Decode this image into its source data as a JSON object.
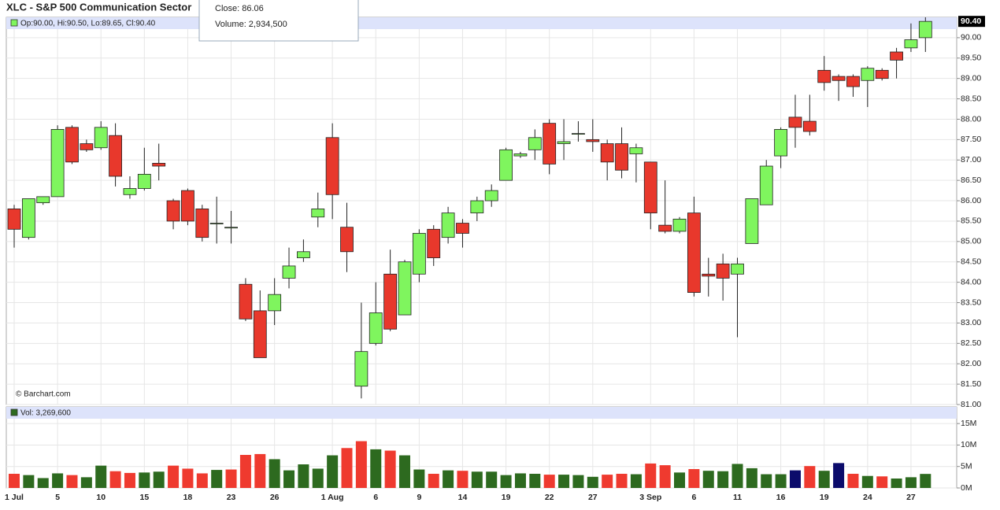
{
  "chart_data": [
    {
      "type": "candlestick",
      "title": "XLC - S&P 500 Communication Sector",
      "legend_text": "Op:90.00, Hi:90.50, Lo:89.65, Cl:90.40",
      "credit": "© Barchart.com",
      "tooltip": [
        "Close: 86.06",
        "Volume: 2,934,500"
      ],
      "last_price": {
        "value": 90.4,
        "label": "90.40"
      },
      "up_color": "#7ff55e",
      "down_color": "#e8382c",
      "legend_color": "#7ff55e",
      "categories": [
        "1 Jul",
        null,
        null,
        "5",
        null,
        null,
        "10",
        null,
        null,
        "15",
        null,
        null,
        "18",
        null,
        null,
        "23",
        null,
        null,
        "26",
        null,
        null,
        null,
        "1 Aug",
        null,
        null,
        "6",
        null,
        null,
        "9",
        null,
        null,
        "14",
        null,
        null,
        "19",
        null,
        null,
        "22",
        null,
        null,
        "27",
        null,
        null,
        null,
        "3 Sep",
        null,
        null,
        "6",
        null,
        null,
        "11",
        null,
        null,
        "16",
        null,
        null,
        "19",
        null,
        null,
        "24",
        null,
        null,
        "27",
        null
      ],
      "open": [
        85.8,
        85.1,
        85.95,
        86.1,
        87.8,
        87.4,
        87.3,
        87.6,
        86.15,
        86.3,
        86.92,
        86.0,
        86.25,
        85.8,
        85.45,
        85.35,
        83.95,
        83.3,
        83.3,
        84.1,
        84.6,
        85.6,
        87.55,
        85.35,
        81.45,
        82.5,
        84.2,
        83.2,
        84.2,
        85.3,
        85.1,
        85.45,
        85.7,
        86.0,
        86.5,
        87.1,
        87.25,
        87.9,
        87.4,
        87.65,
        87.5,
        87.4,
        87.4,
        87.15,
        86.95,
        85.4,
        85.25,
        85.7,
        84.2,
        84.45,
        84.2,
        84.95,
        85.9,
        87.1,
        88.05,
        87.95,
        89.2,
        89.05,
        89.05,
        88.95,
        89.2,
        89.65,
        89.75,
        90.0
      ],
      "high": [
        85.9,
        86.05,
        86.1,
        87.85,
        87.85,
        87.5,
        87.95,
        87.9,
        86.6,
        87.3,
        87.4,
        86.05,
        86.3,
        85.9,
        86.1,
        85.75,
        84.1,
        83.8,
        84.1,
        84.85,
        85.05,
        86.2,
        87.9,
        85.95,
        83.5,
        84.0,
        84.8,
        84.55,
        85.3,
        85.4,
        85.85,
        85.55,
        86.1,
        86.4,
        87.3,
        87.2,
        87.75,
        88.0,
        88.0,
        87.95,
        88.0,
        87.5,
        87.8,
        87.4,
        86.95,
        86.5,
        85.6,
        86.1,
        84.6,
        84.7,
        84.6,
        86.05,
        87.0,
        87.8,
        88.6,
        88.6,
        89.55,
        89.1,
        89.1,
        89.3,
        89.25,
        89.75,
        90.35,
        90.5
      ],
      "low": [
        84.85,
        85.05,
        85.9,
        86.1,
        86.9,
        87.2,
        87.25,
        86.35,
        86.05,
        86.25,
        86.5,
        85.3,
        85.4,
        85.0,
        84.95,
        84.95,
        83.05,
        82.15,
        82.95,
        83.85,
        84.5,
        85.35,
        85.55,
        84.25,
        81.15,
        82.45,
        82.8,
        83.2,
        84.0,
        84.4,
        84.95,
        84.85,
        85.5,
        85.85,
        86.5,
        87.05,
        87.0,
        86.65,
        87.0,
        87.45,
        87.2,
        86.5,
        86.55,
        86.45,
        85.3,
        85.2,
        85.2,
        83.65,
        83.65,
        83.55,
        82.65,
        84.95,
        85.9,
        86.8,
        87.3,
        87.6,
        88.7,
        88.45,
        88.55,
        88.3,
        88.95,
        89.0,
        89.65,
        89.65
      ],
      "close": [
        85.3,
        86.05,
        86.1,
        87.75,
        86.95,
        87.25,
        87.8,
        86.6,
        86.3,
        86.65,
        86.85,
        85.5,
        85.5,
        85.1,
        85.45,
        85.35,
        83.1,
        82.15,
        83.7,
        84.4,
        84.75,
        85.8,
        86.15,
        84.75,
        82.3,
        83.25,
        82.85,
        84.5,
        85.2,
        84.6,
        85.7,
        85.2,
        86.0,
        86.25,
        87.25,
        87.15,
        87.55,
        86.9,
        87.45,
        87.65,
        87.45,
        86.95,
        86.75,
        87.3,
        85.7,
        85.25,
        85.55,
        83.75,
        84.15,
        84.1,
        84.45,
        86.05,
        86.85,
        87.75,
        87.8,
        87.7,
        88.9,
        88.95,
        88.8,
        89.25,
        89.0,
        89.45,
        89.95,
        90.4
      ],
      "ylim": [
        81,
        90.5
      ],
      "yticks": [
        {
          "value": 81,
          "label": "81.00"
        },
        {
          "value": 81.5,
          "label": "81.50"
        },
        {
          "value": 82,
          "label": "82.00"
        },
        {
          "value": 82.5,
          "label": "82.50"
        },
        {
          "value": 83,
          "label": "83.00"
        },
        {
          "value": 83.5,
          "label": "83.50"
        },
        {
          "value": 84,
          "label": "84.00"
        },
        {
          "value": 84.5,
          "label": "84.50"
        },
        {
          "value": 85,
          "label": "85.00"
        },
        {
          "value": 85.5,
          "label": "85.50"
        },
        {
          "value": 86,
          "label": "86.00"
        },
        {
          "value": 86.5,
          "label": "86.50"
        },
        {
          "value": 87,
          "label": "87.00"
        },
        {
          "value": 87.5,
          "label": "87.50"
        },
        {
          "value": 88,
          "label": "88.00"
        },
        {
          "value": 88.5,
          "label": "88.50"
        },
        {
          "value": 89,
          "label": "89.00"
        },
        {
          "value": 89.5,
          "label": "89.50"
        },
        {
          "value": 90,
          "label": "90.00"
        }
      ],
      "grid": true
    },
    {
      "type": "bar",
      "legend_text": "Vol: 3,269,600",
      "legend_color": "#2d6a1f",
      "values": [
        3.3,
        3.0,
        2.3,
        3.4,
        3.0,
        2.5,
        5.2,
        3.9,
        3.5,
        3.6,
        3.8,
        5.2,
        4.5,
        3.4,
        4.2,
        4.3,
        7.7,
        7.9,
        6.7,
        4.1,
        5.5,
        4.5,
        7.6,
        9.3,
        10.9,
        9.0,
        8.7,
        7.6,
        4.3,
        3.3,
        4.1,
        4.0,
        3.8,
        3.8,
        3.0,
        3.4,
        3.3,
        3.1,
        3.1,
        3.0,
        2.6,
        3.1,
        3.3,
        3.2,
        5.7,
        5.3,
        3.6,
        4.4,
        4.0,
        3.9,
        5.6,
        4.6,
        3.2,
        3.2,
        4.1,
        5.1,
        4.0,
        5.8,
        3.3,
        2.8,
        2.7,
        2.2,
        2.5,
        3.27
      ],
      "colors": [
        "#ef3a2f",
        "#2d6a1f",
        "#2d6a1f",
        "#2d6a1f",
        "#ef3a2f",
        "#2d6a1f",
        "#2d6a1f",
        "#ef3a2f",
        "#ef3a2f",
        "#2d6a1f",
        "#2d6a1f",
        "#ef3a2f",
        "#ef3a2f",
        "#ef3a2f",
        "#2d6a1f",
        "#ef3a2f",
        "#ef3a2f",
        "#ef3a2f",
        "#2d6a1f",
        "#2d6a1f",
        "#2d6a1f",
        "#2d6a1f",
        "#2d6a1f",
        "#ef3a2f",
        "#ef3a2f",
        "#2d6a1f",
        "#ef3a2f",
        "#2d6a1f",
        "#2d6a1f",
        "#ef3a2f",
        "#2d6a1f",
        "#ef3a2f",
        "#2d6a1f",
        "#2d6a1f",
        "#2d6a1f",
        "#2d6a1f",
        "#2d6a1f",
        "#ef3a2f",
        "#2d6a1f",
        "#2d6a1f",
        "#2d6a1f",
        "#ef3a2f",
        "#ef3a2f",
        "#2d6a1f",
        "#ef3a2f",
        "#ef3a2f",
        "#2d6a1f",
        "#ef3a2f",
        "#2d6a1f",
        "#2d6a1f",
        "#2d6a1f",
        "#2d6a1f",
        "#2d6a1f",
        "#2d6a1f",
        "#0b0b6b",
        "#ef3a2f",
        "#2d6a1f",
        "#0b0b6b",
        "#ef3a2f",
        "#2d6a1f",
        "#ef3a2f",
        "#2d6a1f",
        "#2d6a1f",
        "#2d6a1f"
      ],
      "ylim": [
        0,
        16.5
      ],
      "yticks": [
        {
          "value": 0,
          "label": "0M"
        },
        {
          "value": 5,
          "label": "5M"
        },
        {
          "value": 10,
          "label": "10M"
        },
        {
          "value": 15,
          "label": "15M"
        }
      ],
      "grid": true
    }
  ]
}
